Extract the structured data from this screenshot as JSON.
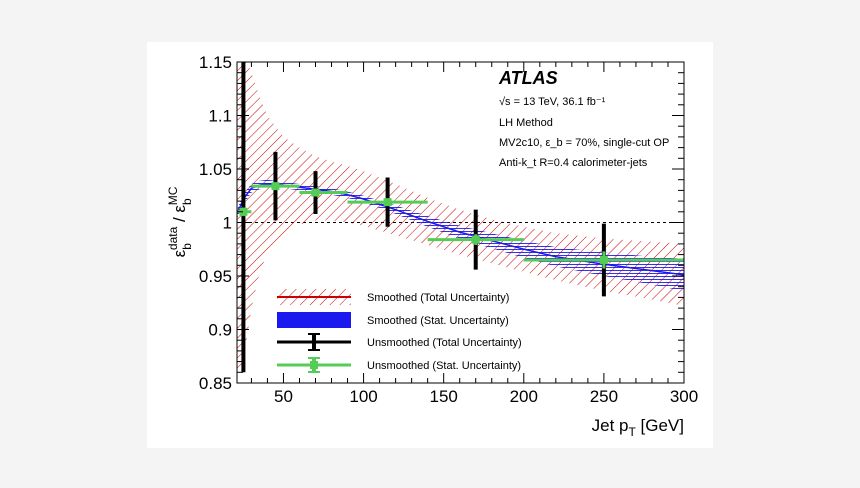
{
  "panel": {
    "background": "#ffffff",
    "page_background": "#f4f4f4"
  },
  "chart_data": {
    "type": "line",
    "xlabel": "Jet p_T [GeV]",
    "ylabel": "ε_b^data / ε_b^MC",
    "xlim": [
      21,
      300
    ],
    "ylim": [
      0.85,
      1.15
    ],
    "x_ticks": [
      50,
      100,
      150,
      200,
      250,
      300
    ],
    "y_ticks": [
      0.85,
      0.9,
      0.95,
      1,
      1.05,
      1.1,
      1.15
    ],
    "reference_line": {
      "y": 1.0,
      "style": "dashed"
    },
    "annotations": {
      "experiment": "ATLAS",
      "energy": "√s = 13 TeV, 36.1 fb⁻¹",
      "method": "LH Method",
      "tagger": "MV2c10, ε_b = 70%, single-cut OP",
      "jets": "Anti-k_t R=0.4 calorimeter-jets"
    },
    "legend": {
      "position": "bottom-left",
      "entries": [
        "Smoothed (Total Uncertainty)",
        "Smoothed (Stat. Uncertainty)",
        "Unsmoothed (Total Uncertainty)",
        "Unsmoothed (Stat. Uncertainty)"
      ]
    },
    "series": [
      {
        "name": "Smoothed (Total Uncertainty)",
        "color": "#cc0000",
        "x": [
          21,
          25,
          30,
          35,
          40,
          50,
          60,
          70,
          80,
          90,
          100,
          120,
          140,
          160,
          180,
          200,
          220,
          250,
          280,
          300
        ],
        "y": [
          1.008,
          1.022,
          1.032,
          1.035,
          1.036,
          1.035,
          1.033,
          1.031,
          1.029,
          1.026,
          1.022,
          1.012,
          1.001,
          0.991,
          0.983,
          0.975,
          0.968,
          0.961,
          0.955,
          0.951
        ],
        "upper": [
          1.16,
          1.16,
          1.14,
          1.118,
          1.1,
          1.08,
          1.07,
          1.062,
          1.057,
          1.053,
          1.048,
          1.036,
          1.023,
          1.012,
          1.003,
          0.996,
          0.99,
          0.985,
          0.982,
          0.98
        ],
        "lower": [
          0.86,
          0.87,
          0.92,
          0.952,
          0.972,
          0.99,
          0.998,
          1.002,
          1.002,
          1.0,
          0.997,
          0.988,
          0.979,
          0.97,
          0.962,
          0.954,
          0.946,
          0.936,
          0.928,
          0.922
        ]
      },
      {
        "name": "Smoothed (Stat. Uncertainty)",
        "color": "#1a1aee",
        "x": [
          21,
          25,
          30,
          35,
          40,
          50,
          60,
          70,
          80,
          90,
          100,
          120,
          140,
          160,
          180,
          200,
          220,
          250,
          280,
          300
        ],
        "y": [
          1.008,
          1.022,
          1.032,
          1.035,
          1.036,
          1.035,
          1.033,
          1.031,
          1.029,
          1.026,
          1.022,
          1.012,
          1.001,
          0.991,
          0.983,
          0.975,
          0.968,
          0.961,
          0.955,
          0.951
        ],
        "upper": [
          1.012,
          1.027,
          1.036,
          1.039,
          1.04,
          1.038,
          1.036,
          1.034,
          1.032,
          1.029,
          1.025,
          1.016,
          1.006,
          0.997,
          0.99,
          0.983,
          0.977,
          0.972,
          0.968,
          0.966
        ],
        "lower": [
          1.004,
          1.017,
          1.028,
          1.031,
          1.032,
          1.032,
          1.03,
          1.028,
          1.026,
          1.023,
          1.019,
          1.008,
          0.996,
          0.985,
          0.976,
          0.967,
          0.959,
          0.95,
          0.942,
          0.936
        ]
      },
      {
        "name": "Unsmoothed (Total Uncertainty)",
        "color": "#000000",
        "points": [
          {
            "x": 25,
            "y": 1.01,
            "ylow": 0.86,
            "yhigh": 1.16
          },
          {
            "x": 45,
            "y": 1.034,
            "ylow": 1.002,
            "yhigh": 1.066
          },
          {
            "x": 70,
            "y": 1.028,
            "ylow": 1.008,
            "yhigh": 1.048
          },
          {
            "x": 115,
            "y": 1.019,
            "ylow": 0.996,
            "yhigh": 1.042
          },
          {
            "x": 170,
            "y": 0.984,
            "ylow": 0.956,
            "yhigh": 1.012
          },
          {
            "x": 250,
            "y": 0.965,
            "ylow": 0.931,
            "yhigh": 0.999
          }
        ]
      },
      {
        "name": "Unsmoothed (Stat. Uncertainty)",
        "color": "#55cc55",
        "points": [
          {
            "x": 25,
            "y": 1.01,
            "xlow": 20,
            "xhigh": 30,
            "ylow": 1.006,
            "yhigh": 1.014
          },
          {
            "x": 45,
            "y": 1.034,
            "xlow": 30,
            "xhigh": 60,
            "ylow": 1.031,
            "yhigh": 1.037
          },
          {
            "x": 70,
            "y": 1.028,
            "xlow": 60,
            "xhigh": 90,
            "ylow": 1.025,
            "yhigh": 1.031
          },
          {
            "x": 115,
            "y": 1.019,
            "xlow": 90,
            "xhigh": 140,
            "ylow": 1.016,
            "yhigh": 1.022
          },
          {
            "x": 170,
            "y": 0.984,
            "xlow": 140,
            "xhigh": 200,
            "ylow": 0.979,
            "yhigh": 0.989
          },
          {
            "x": 250,
            "y": 0.965,
            "xlow": 200,
            "xhigh": 300,
            "ylow": 0.957,
            "yhigh": 0.973
          }
        ]
      }
    ]
  }
}
